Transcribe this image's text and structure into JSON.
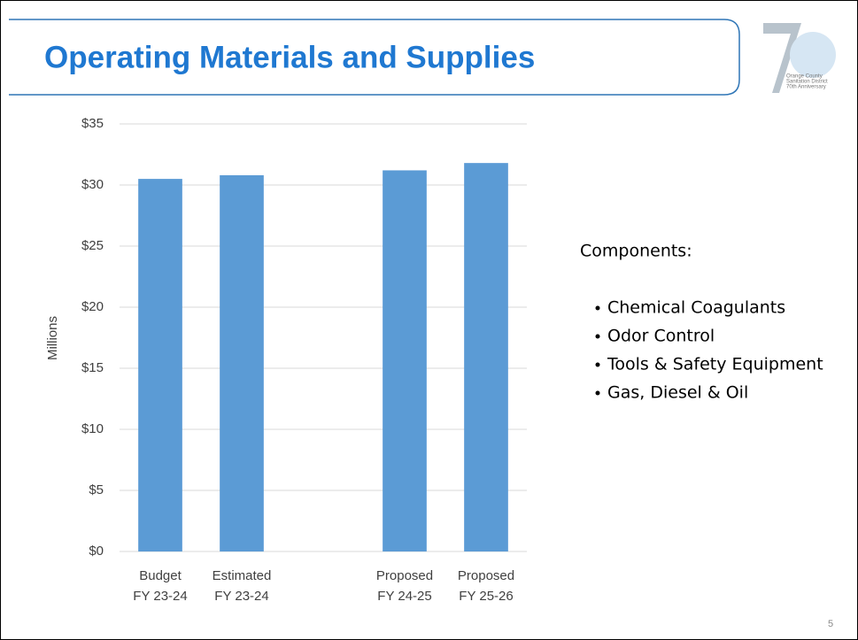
{
  "chart_data": {
    "type": "bar",
    "title": "Operating Materials and Supplies",
    "y_label": "Millions",
    "categories": [
      [
        "Budget",
        "FY 23-24"
      ],
      [
        "Estimated",
        "FY 23-24"
      ],
      null,
      [
        "Proposed",
        "FY 24-25"
      ],
      [
        "Proposed",
        "FY 25-26"
      ]
    ],
    "values": [
      30.5,
      30.8,
      null,
      31.2,
      31.8
    ],
    "color": "#5b9bd5",
    "ylim": [
      0,
      35
    ],
    "yticks": [
      {
        "value": 0,
        "label": "$0"
      },
      {
        "value": 5,
        "label": "$5"
      },
      {
        "value": 10,
        "label": "$10"
      },
      {
        "value": 15,
        "label": "$15"
      },
      {
        "value": 20,
        "label": "$20"
      },
      {
        "value": 25,
        "label": "$25"
      },
      {
        "value": 30,
        "label": "$30"
      },
      {
        "value": 35,
        "label": "$35"
      }
    ],
    "grid": true
  },
  "side_panel": {
    "heading": "Components:",
    "bullets": [
      "Chemical Coagulants",
      "Odor Control",
      "Tools & Safety Equipment",
      "Gas, Diesel & Oil"
    ]
  },
  "logo": {
    "lines": [
      "Orange County",
      "Sanitation District",
      "70th Anniversary"
    ]
  },
  "page_number": "5"
}
